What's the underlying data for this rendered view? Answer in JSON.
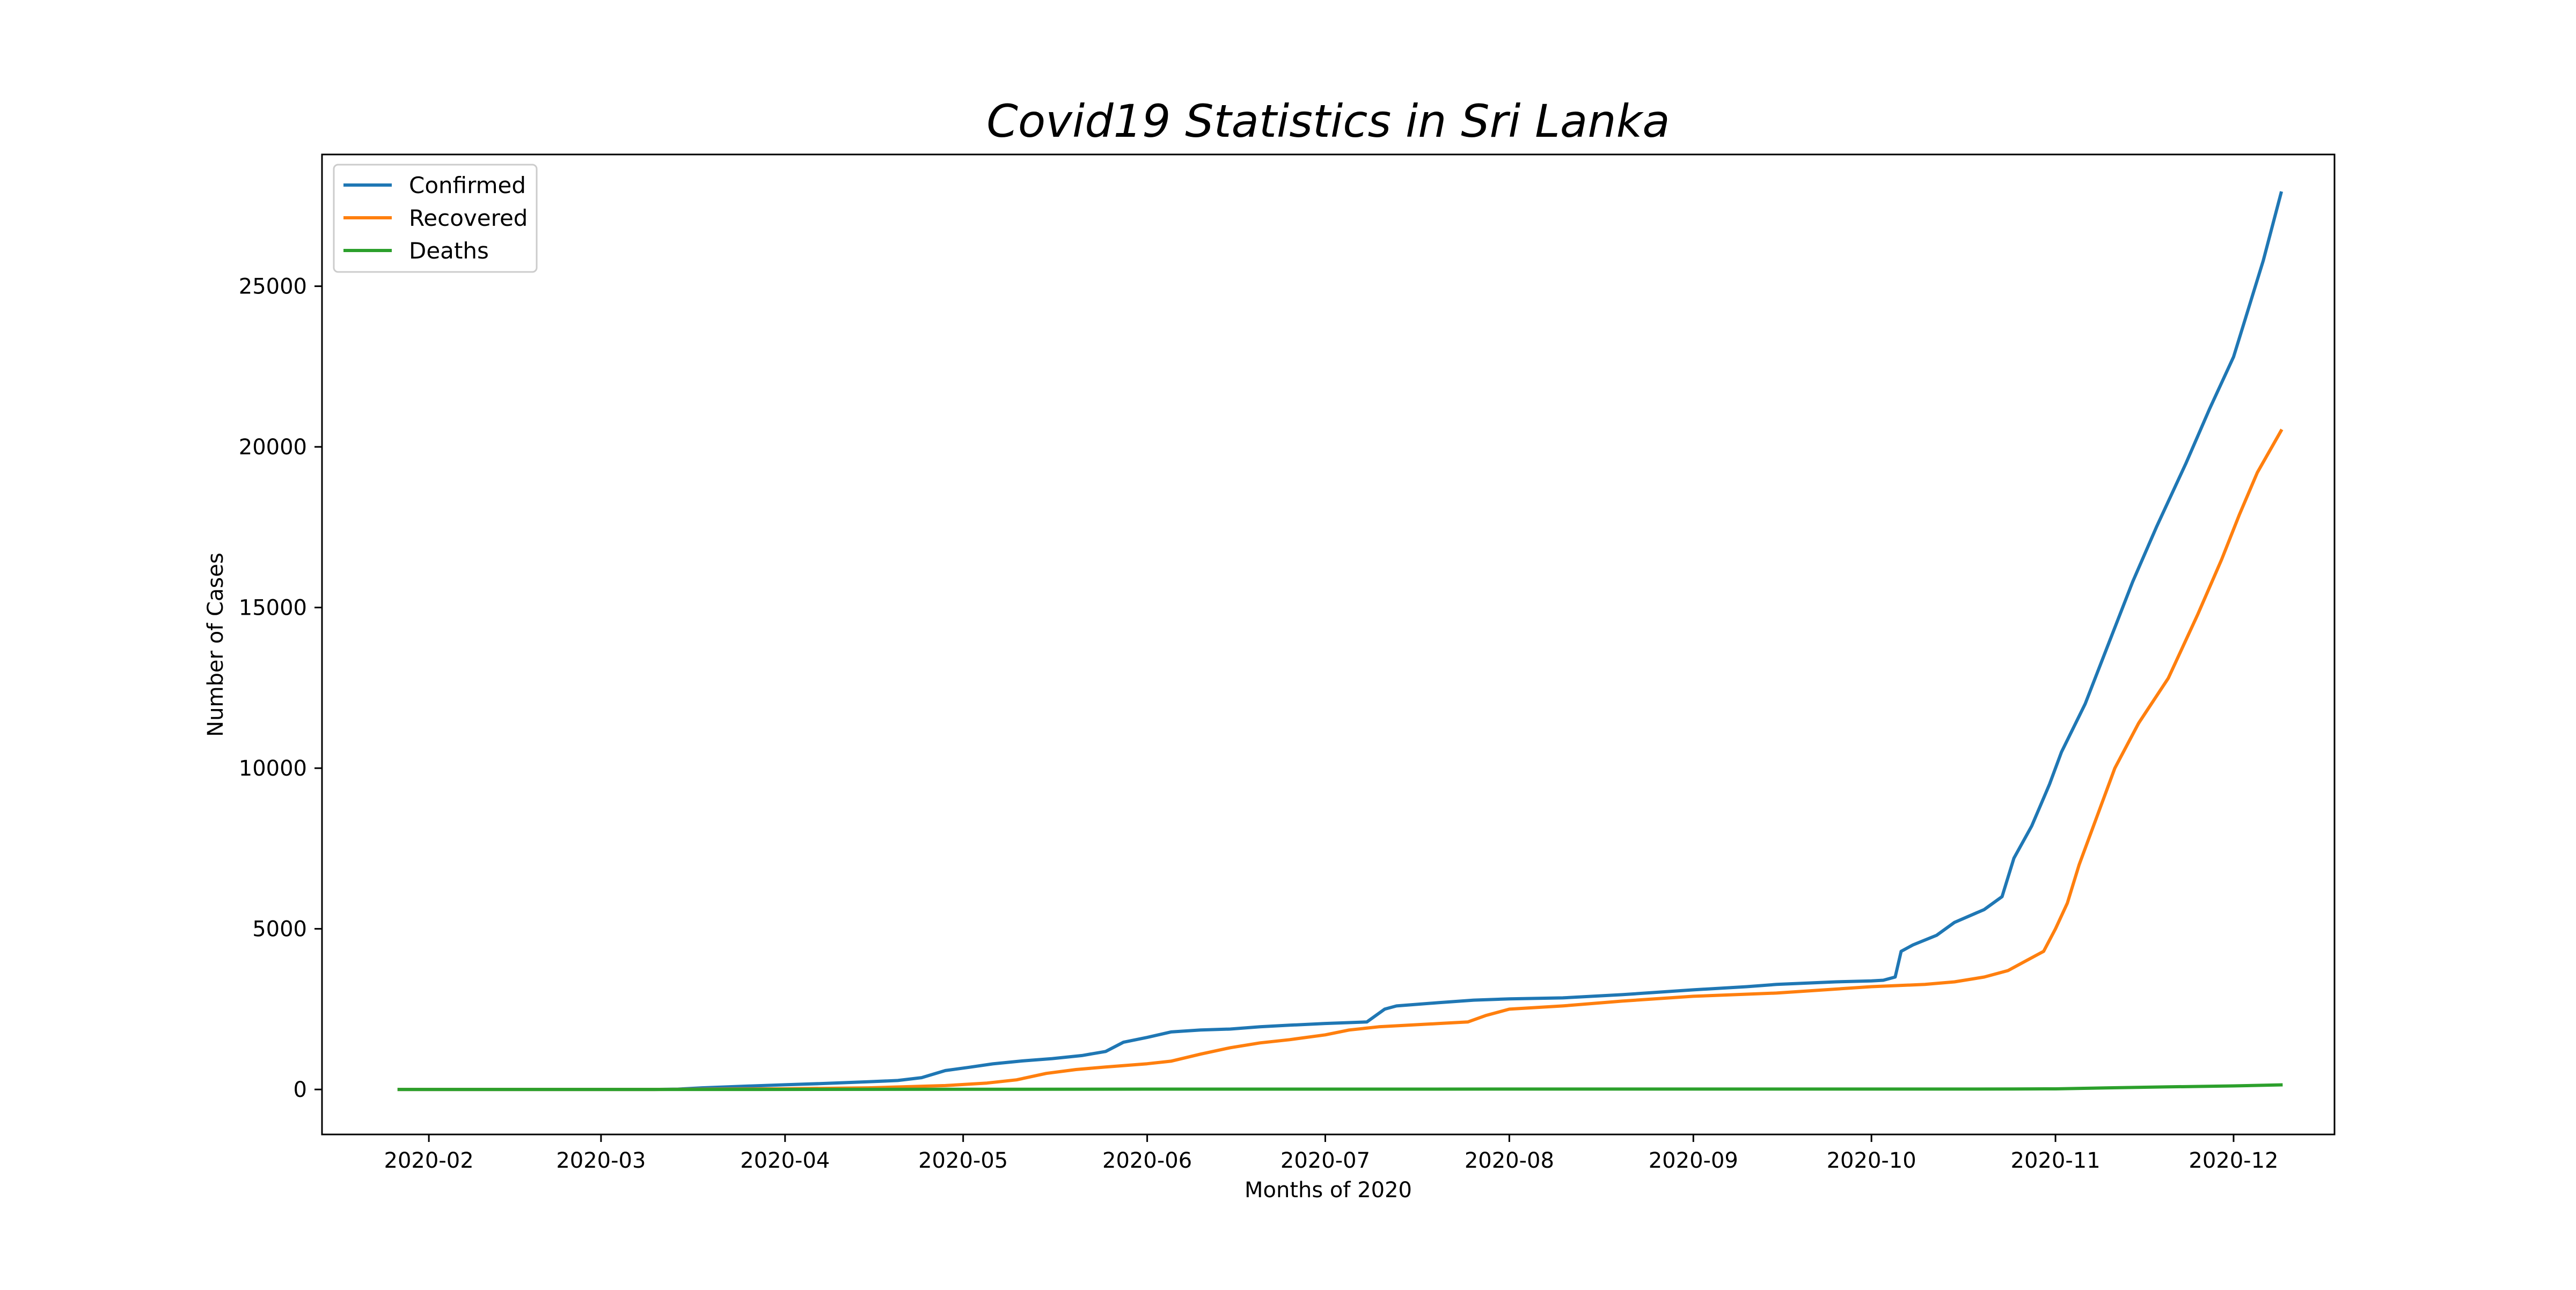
{
  "chart_data": {
    "type": "line",
    "title": "Covid19 Statistics in Sri Lanka",
    "xlabel": "Months of 2020",
    "ylabel": "Number of Cases",
    "xlim": [
      "2020-01-14",
      "2020-12-18"
    ],
    "ylim": [
      -1400,
      29100
    ],
    "x_ticks": [
      "2020-02",
      "2020-03",
      "2020-04",
      "2020-05",
      "2020-06",
      "2020-07",
      "2020-08",
      "2020-09",
      "2020-10",
      "2020-11",
      "2020-12"
    ],
    "y_ticks": [
      0,
      5000,
      10000,
      15000,
      20000,
      25000
    ],
    "y_tick_labels": [
      "0",
      "5000",
      "10000",
      "15000",
      "20000",
      "25000"
    ],
    "grid": false,
    "legend_position": "top-left",
    "series": [
      {
        "name": "Confirmed",
        "color": "#1f77b4",
        "points": [
          [
            "2020-01-27",
            1
          ],
          [
            "2020-03-10",
            1
          ],
          [
            "2020-03-14",
            10
          ],
          [
            "2020-03-18",
            50
          ],
          [
            "2020-03-25",
            100
          ],
          [
            "2020-04-01",
            146
          ],
          [
            "2020-04-08",
            190
          ],
          [
            "2020-04-15",
            240
          ],
          [
            "2020-04-20",
            280
          ],
          [
            "2020-04-24",
            368
          ],
          [
            "2020-04-28",
            588
          ],
          [
            "2020-05-02",
            690
          ],
          [
            "2020-05-06",
            797
          ],
          [
            "2020-05-11",
            889
          ],
          [
            "2020-05-16",
            960
          ],
          [
            "2020-05-21",
            1055
          ],
          [
            "2020-05-25",
            1182
          ],
          [
            "2020-05-28",
            1469
          ],
          [
            "2020-06-01",
            1620
          ],
          [
            "2020-06-05",
            1790
          ],
          [
            "2020-06-10",
            1850
          ],
          [
            "2020-06-15",
            1880
          ],
          [
            "2020-06-20",
            1950
          ],
          [
            "2020-06-25",
            2000
          ],
          [
            "2020-07-01",
            2054
          ],
          [
            "2020-07-08",
            2100
          ],
          [
            "2020-07-11",
            2500
          ],
          [
            "2020-07-13",
            2600
          ],
          [
            "2020-07-20",
            2700
          ],
          [
            "2020-07-26",
            2780
          ],
          [
            "2020-08-01",
            2820
          ],
          [
            "2020-08-10",
            2850
          ],
          [
            "2020-08-20",
            2950
          ],
          [
            "2020-09-01",
            3100
          ],
          [
            "2020-09-10",
            3200
          ],
          [
            "2020-09-15",
            3270
          ],
          [
            "2020-09-25",
            3350
          ],
          [
            "2020-10-01",
            3380
          ],
          [
            "2020-10-03",
            3400
          ],
          [
            "2020-10-05",
            3500
          ],
          [
            "2020-10-06",
            4300
          ],
          [
            "2020-10-08",
            4500
          ],
          [
            "2020-10-12",
            4800
          ],
          [
            "2020-10-15",
            5200
          ],
          [
            "2020-10-20",
            5600
          ],
          [
            "2020-10-23",
            6000
          ],
          [
            "2020-10-25",
            7200
          ],
          [
            "2020-10-28",
            8200
          ],
          [
            "2020-10-31",
            9500
          ],
          [
            "2020-11-02",
            10500
          ],
          [
            "2020-11-06",
            12000
          ],
          [
            "2020-11-10",
            13900
          ],
          [
            "2020-11-14",
            15800
          ],
          [
            "2020-11-18",
            17500
          ],
          [
            "2020-11-23",
            19500
          ],
          [
            "2020-11-27",
            21200
          ],
          [
            "2020-12-01",
            22800
          ],
          [
            "2020-12-03",
            24000
          ],
          [
            "2020-12-06",
            25800
          ],
          [
            "2020-12-09",
            27900
          ]
        ]
      },
      {
        "name": "Recovered",
        "color": "#ff7f0e",
        "points": [
          [
            "2020-01-27",
            0
          ],
          [
            "2020-03-10",
            0
          ],
          [
            "2020-04-01",
            20
          ],
          [
            "2020-04-15",
            50
          ],
          [
            "2020-04-28",
            120
          ],
          [
            "2020-05-05",
            200
          ],
          [
            "2020-05-10",
            300
          ],
          [
            "2020-05-15",
            500
          ],
          [
            "2020-05-20",
            620
          ],
          [
            "2020-05-25",
            700
          ],
          [
            "2020-06-01",
            800
          ],
          [
            "2020-06-05",
            880
          ],
          [
            "2020-06-10",
            1100
          ],
          [
            "2020-06-15",
            1300
          ],
          [
            "2020-06-20",
            1450
          ],
          [
            "2020-06-25",
            1550
          ],
          [
            "2020-07-01",
            1700
          ],
          [
            "2020-07-05",
            1850
          ],
          [
            "2020-07-10",
            1950
          ],
          [
            "2020-07-15",
            2000
          ],
          [
            "2020-07-20",
            2050
          ],
          [
            "2020-07-25",
            2100
          ],
          [
            "2020-07-28",
            2300
          ],
          [
            "2020-08-01",
            2500
          ],
          [
            "2020-08-10",
            2600
          ],
          [
            "2020-08-20",
            2750
          ],
          [
            "2020-09-01",
            2900
          ],
          [
            "2020-09-15",
            3000
          ],
          [
            "2020-10-01",
            3200
          ],
          [
            "2020-10-10",
            3270
          ],
          [
            "2020-10-15",
            3350
          ],
          [
            "2020-10-20",
            3500
          ],
          [
            "2020-10-24",
            3700
          ],
          [
            "2020-10-27",
            4000
          ],
          [
            "2020-10-30",
            4300
          ],
          [
            "2020-11-01",
            5000
          ],
          [
            "2020-11-03",
            5800
          ],
          [
            "2020-11-05",
            7000
          ],
          [
            "2020-11-08",
            8500
          ],
          [
            "2020-11-11",
            10000
          ],
          [
            "2020-11-15",
            11400
          ],
          [
            "2020-11-20",
            12800
          ],
          [
            "2020-11-25",
            14800
          ],
          [
            "2020-11-29",
            16500
          ],
          [
            "2020-12-02",
            17900
          ],
          [
            "2020-12-05",
            19200
          ],
          [
            "2020-12-09",
            20500
          ]
        ]
      },
      {
        "name": "Deaths",
        "color": "#2ca02c",
        "points": [
          [
            "2020-01-27",
            0
          ],
          [
            "2020-03-28",
            1
          ],
          [
            "2020-06-01",
            10
          ],
          [
            "2020-09-01",
            12
          ],
          [
            "2020-10-15",
            13
          ],
          [
            "2020-10-25",
            16
          ],
          [
            "2020-11-01",
            19
          ],
          [
            "2020-11-10",
            50
          ],
          [
            "2020-11-20",
            80
          ],
          [
            "2020-12-01",
            110
          ],
          [
            "2020-12-09",
            142
          ]
        ]
      }
    ]
  }
}
